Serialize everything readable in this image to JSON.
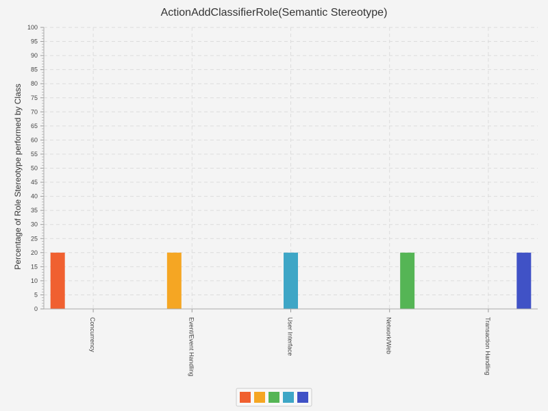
{
  "chart_data": {
    "type": "bar",
    "title": "ActionAddClassifierRole(Semantic Stereotype)",
    "xlabel": "",
    "ylabel": "Percentage of Role Stereotype performed by Class",
    "categories": [
      "Concurrency",
      "Event/Event Handling",
      "User Interface",
      "Network/Web",
      "Transaction Handling"
    ],
    "ylim": [
      0,
      100
    ],
    "ytick_step": 5,
    "series": [
      {
        "color": "#f06030",
        "values": [
          20,
          null,
          null,
          null,
          null
        ]
      },
      {
        "color": "#f5a623",
        "values": [
          null,
          20,
          null,
          null,
          null
        ]
      },
      {
        "color": "#3ea6c6",
        "values": [
          null,
          null,
          20,
          null,
          null
        ]
      },
      {
        "color": "#55b555",
        "values": [
          null,
          null,
          null,
          20,
          null
        ]
      },
      {
        "color": "#4052c6",
        "values": [
          null,
          null,
          null,
          null,
          20
        ]
      }
    ],
    "legend": {
      "placement": "bottom-center",
      "swatches": [
        "#f06030",
        "#f5a623",
        "#55b555",
        "#3ea6c6",
        "#4052c6"
      ]
    },
    "grid": true
  }
}
